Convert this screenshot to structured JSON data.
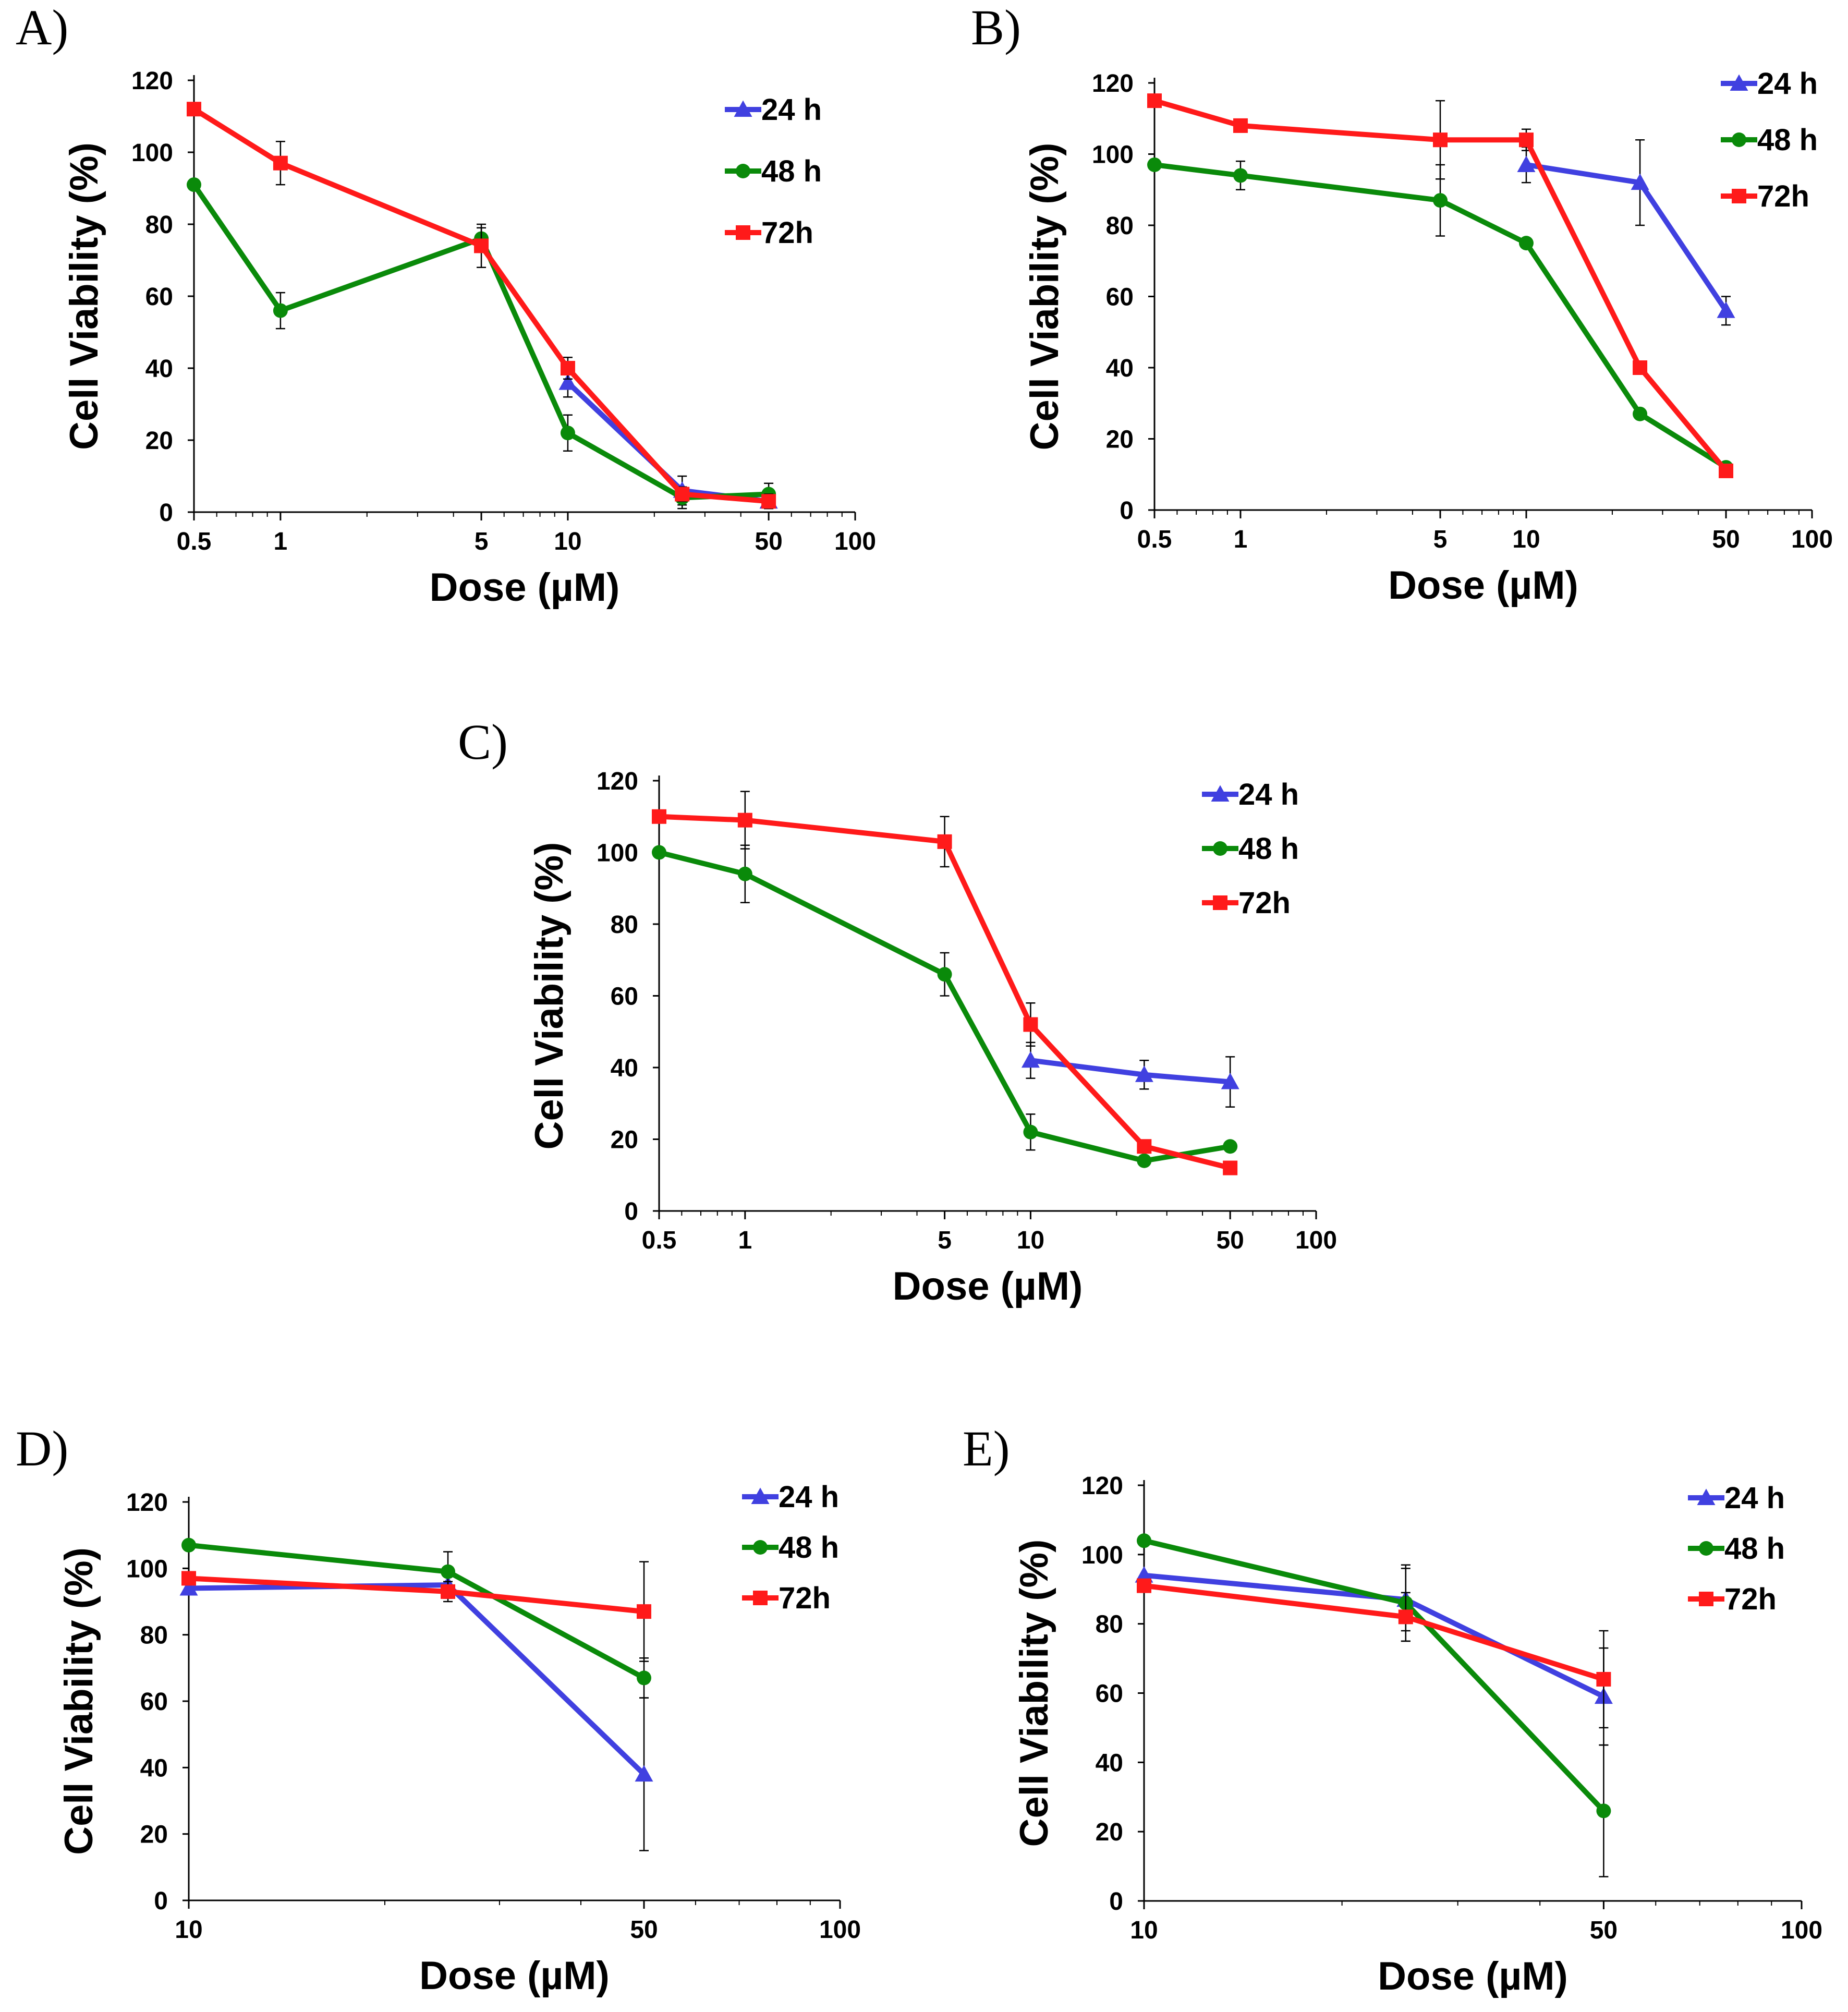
{
  "chart_data": [
    {
      "id": "A",
      "panel_label": "A)",
      "type": "line",
      "xscale": "log",
      "xlim": [
        0.5,
        100
      ],
      "ylim": [
        0,
        120
      ],
      "xticks": [
        0.5,
        1,
        5,
        10,
        50,
        100
      ],
      "xtick_labels": [
        "0.5",
        "1",
        "5",
        "10",
        "50",
        "100"
      ],
      "yticks": [
        0,
        20,
        40,
        60,
        80,
        100,
        120
      ],
      "ytick_labels": [
        "0",
        "20",
        "40",
        "60",
        "80",
        "100",
        "120"
      ],
      "xlabel": "Dose (µM)",
      "ylabel": "Cell Viability (%)",
      "series": [
        {
          "name": "24 h",
          "color": "#4040e0",
          "marker": "triangle",
          "x": [
            10,
            25,
            50
          ],
          "y": [
            36,
            6,
            3
          ],
          "err": [
            4,
            4,
            2
          ]
        },
        {
          "name": "48 h",
          "color": "#0a8a0a",
          "marker": "circle",
          "x": [
            0.5,
            1,
            5,
            10,
            25,
            50
          ],
          "y": [
            91,
            56,
            76,
            22,
            4,
            5
          ],
          "err": [
            0,
            5,
            3,
            5,
            3,
            3
          ]
        },
        {
          "name": "72h",
          "color": "#ff1a1a",
          "marker": "square",
          "x": [
            0.5,
            1,
            5,
            10,
            25,
            50
          ],
          "y": [
            112,
            97,
            74,
            40,
            5,
            3
          ],
          "err": [
            0,
            6,
            6,
            3,
            2,
            2
          ]
        }
      ]
    },
    {
      "id": "B",
      "panel_label": "B)",
      "type": "line",
      "xscale": "log",
      "xlim": [
        0.5,
        100
      ],
      "ylim": [
        0,
        120
      ],
      "xticks": [
        0.5,
        1,
        5,
        10,
        50,
        100
      ],
      "xtick_labels": [
        "0.5",
        "1",
        "5",
        "10",
        "50",
        "100"
      ],
      "yticks": [
        0,
        20,
        40,
        60,
        80,
        100,
        120
      ],
      "ytick_labels": [
        "0",
        "20",
        "40",
        "60",
        "80",
        "100",
        "120"
      ],
      "xlabel": "Dose (µM)",
      "ylabel": "Cell Viability (%)",
      "series": [
        {
          "name": "24 h",
          "color": "#4040e0",
          "marker": "triangle",
          "x": [
            10,
            25,
            50
          ],
          "y": [
            97,
            92,
            56
          ],
          "err": [
            5,
            12,
            4
          ]
        },
        {
          "name": "48 h",
          "color": "#0a8a0a",
          "marker": "circle",
          "x": [
            0.5,
            1,
            5,
            10,
            25,
            50
          ],
          "y": [
            97,
            94,
            87,
            75,
            27,
            12
          ],
          "err": [
            0,
            4,
            10,
            0,
            0,
            0
          ]
        },
        {
          "name": "72h",
          "color": "#ff1a1a",
          "marker": "square",
          "x": [
            0.5,
            1,
            5,
            10,
            25,
            50
          ],
          "y": [
            115,
            108,
            104,
            104,
            40,
            11
          ],
          "err": [
            0,
            0,
            11,
            3,
            0,
            0
          ]
        }
      ]
    },
    {
      "id": "C",
      "panel_label": "C)",
      "type": "line",
      "xscale": "log",
      "xlim": [
        0.5,
        100
      ],
      "ylim": [
        0,
        120
      ],
      "xticks": [
        0.5,
        1,
        5,
        10,
        50,
        100
      ],
      "xtick_labels": [
        "0.5",
        "1",
        "5",
        "10",
        "50",
        "100"
      ],
      "yticks": [
        0,
        20,
        40,
        60,
        80,
        100,
        120
      ],
      "ytick_labels": [
        "0",
        "20",
        "40",
        "60",
        "80",
        "100",
        "120"
      ],
      "xlabel": "Dose (µM)",
      "ylabel": "Cell Viability (%)",
      "series": [
        {
          "name": "24 h",
          "color": "#4040e0",
          "marker": "triangle",
          "x": [
            10,
            25,
            50
          ],
          "y": [
            42,
            38,
            36
          ],
          "err": [
            5,
            4,
            7
          ]
        },
        {
          "name": "48 h",
          "color": "#0a8a0a",
          "marker": "circle",
          "x": [
            0.5,
            1,
            5,
            10,
            25,
            50
          ],
          "y": [
            100,
            94,
            66,
            22,
            14,
            18
          ],
          "err": [
            0,
            8,
            6,
            5,
            0,
            0
          ]
        },
        {
          "name": "72h",
          "color": "#ff1a1a",
          "marker": "square",
          "x": [
            0.5,
            1,
            5,
            10,
            25,
            50
          ],
          "y": [
            110,
            109,
            103,
            52,
            18,
            12
          ],
          "err": [
            0,
            8,
            7,
            6,
            0,
            0
          ]
        }
      ]
    },
    {
      "id": "D",
      "panel_label": "D)",
      "type": "line",
      "xscale": "log",
      "xlim": [
        10,
        100
      ],
      "ylim": [
        0,
        120
      ],
      "xticks": [
        10,
        50,
        100
      ],
      "xtick_labels": [
        "10",
        "50",
        "100"
      ],
      "yticks": [
        0,
        20,
        40,
        60,
        80,
        100,
        120
      ],
      "ytick_labels": [
        "0",
        "20",
        "40",
        "60",
        "80",
        "100",
        "120"
      ],
      "xlabel": "Dose (µM)",
      "ylabel": "Cell Viability (%)",
      "series": [
        {
          "name": "24 h",
          "color": "#4040e0",
          "marker": "triangle",
          "x": [
            10,
            25,
            50
          ],
          "y": [
            94,
            95,
            38
          ],
          "err": [
            0,
            4,
            23
          ]
        },
        {
          "name": "48 h",
          "color": "#0a8a0a",
          "marker": "circle",
          "x": [
            10,
            25,
            50
          ],
          "y": [
            107,
            99,
            67
          ],
          "err": [
            0,
            6,
            6
          ]
        },
        {
          "name": "72h",
          "color": "#ff1a1a",
          "marker": "square",
          "x": [
            10,
            25,
            50
          ],
          "y": [
            97,
            93,
            87
          ],
          "err": [
            0,
            3,
            15
          ]
        }
      ]
    },
    {
      "id": "E",
      "panel_label": "E)",
      "type": "line",
      "xscale": "log",
      "xlim": [
        10,
        100
      ],
      "ylim": [
        0,
        120
      ],
      "xticks": [
        10,
        50,
        100
      ],
      "xtick_labels": [
        "10",
        "50",
        "100"
      ],
      "yticks": [
        0,
        20,
        40,
        60,
        80,
        100,
        120
      ],
      "ytick_labels": [
        "0",
        "20",
        "40",
        "60",
        "80",
        "100",
        "120"
      ],
      "xlabel": "Dose (µM)",
      "ylabel": "Cell Viability (%)",
      "series": [
        {
          "name": "24 h",
          "color": "#4040e0",
          "marker": "triangle",
          "x": [
            10,
            25,
            50
          ],
          "y": [
            94,
            87,
            59
          ],
          "err": [
            0,
            9,
            14
          ]
        },
        {
          "name": "48 h",
          "color": "#0a8a0a",
          "marker": "circle",
          "x": [
            10,
            25,
            50
          ],
          "y": [
            104,
            86,
            26
          ],
          "err": [
            0,
            11,
            19
          ]
        },
        {
          "name": "72h",
          "color": "#ff1a1a",
          "marker": "square",
          "x": [
            10,
            25,
            50
          ],
          "y": [
            91,
            82,
            64
          ],
          "err": [
            0,
            7,
            14
          ]
        }
      ]
    }
  ]
}
